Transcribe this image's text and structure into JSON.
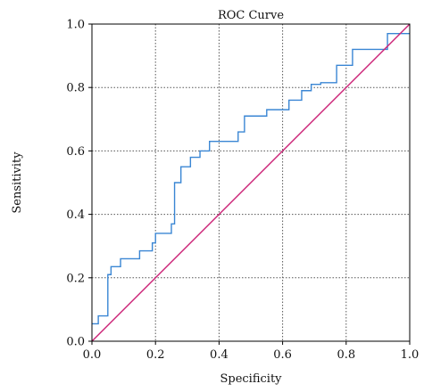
{
  "chart_data": {
    "type": "line",
    "title": "ROC Curve",
    "xlabel": "Specificity",
    "ylabel": "Sensitivity",
    "xlim": [
      0,
      1
    ],
    "ylim": [
      0,
      1
    ],
    "grid": true,
    "x_ticks": [
      0,
      0.2,
      0.4,
      0.6,
      0.8,
      1
    ],
    "x_tick_labels": [
      "0.0",
      "0.2",
      "0.4",
      "0.6",
      "0.8",
      "1.0"
    ],
    "y_ticks": [
      0,
      0.2,
      0.4,
      0.6,
      0.8,
      1
    ],
    "y_tick_labels": [
      "0.0",
      "0.2",
      "0.4",
      "0.6",
      "0.8",
      "1.0"
    ],
    "series": [
      {
        "color": "#3a86d4",
        "x": [
          0,
          0.02,
          0.02,
          0.05,
          0.05,
          0.06,
          0.06,
          0.09,
          0.09,
          0.15,
          0.15,
          0.19,
          0.19,
          0.2,
          0.2,
          0.25,
          0.25,
          0.26,
          0.26,
          0.28,
          0.28,
          0.31,
          0.31,
          0.34,
          0.34,
          0.37,
          0.37,
          0.46,
          0.46,
          0.48,
          0.48,
          0.55,
          0.55,
          0.62,
          0.62,
          0.66,
          0.66,
          0.69,
          0.69,
          0.72,
          0.72,
          0.77,
          0.77,
          0.82,
          0.82,
          0.93,
          0.93,
          0.95,
          0.95,
          1
        ],
        "y": [
          0.055,
          0.055,
          0.08,
          0.08,
          0.21,
          0.21,
          0.235,
          0.235,
          0.26,
          0.26,
          0.285,
          0.285,
          0.31,
          0.31,
          0.34,
          0.34,
          0.37,
          0.37,
          0.5,
          0.5,
          0.55,
          0.55,
          0.58,
          0.58,
          0.6,
          0.6,
          0.63,
          0.63,
          0.66,
          0.66,
          0.71,
          0.71,
          0.73,
          0.73,
          0.76,
          0.76,
          0.79,
          0.79,
          0.81,
          0.81,
          0.815,
          0.815,
          0.87,
          0.87,
          0.92,
          0.92,
          0.97,
          0.97,
          0.97,
          0.97
        ]
      },
      {
        "color": "#cc2277",
        "x": [
          0,
          1
        ],
        "y": [
          0,
          1
        ]
      }
    ]
  },
  "colors": {
    "frame": "#000000",
    "grid": "#555555"
  }
}
